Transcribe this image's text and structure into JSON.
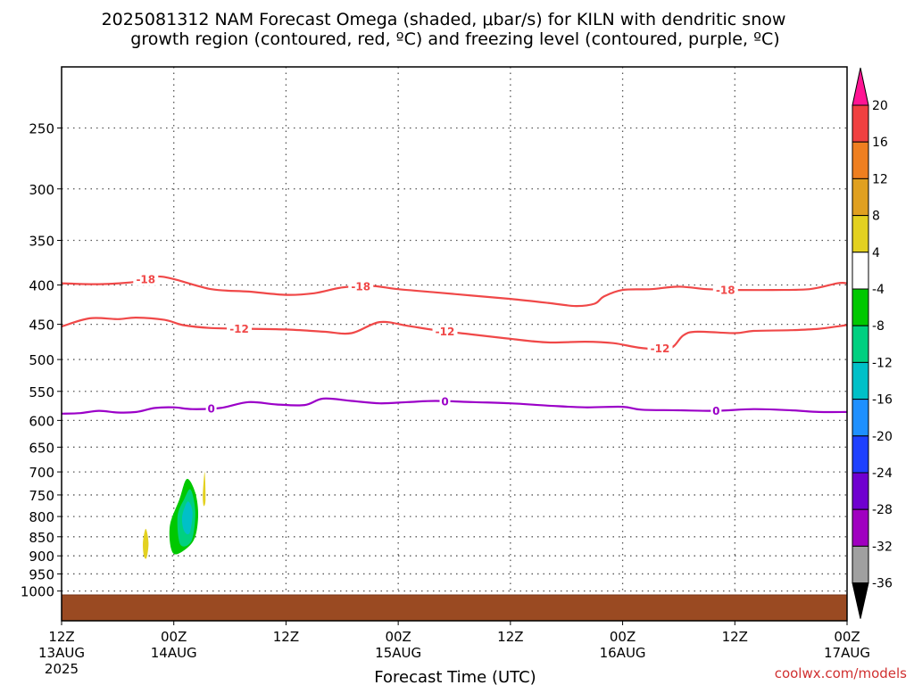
{
  "title": {
    "line1": "2025081312 NAM Forecast Omega (shaded, μbar/s) for KILN with dendritic snow",
    "line2": "growth region (contoured, red, ºC) and freezing level (contoured, purple, ºC)"
  },
  "xlabel": "Forecast Time (UTC)",
  "credit": "coolwx.com/models",
  "x_ticks": [
    {
      "h": 0,
      "l1": "12Z",
      "l2": "13AUG",
      "l3": "2025"
    },
    {
      "h": 12,
      "l1": "00Z",
      "l2": "14AUG",
      "l3": ""
    },
    {
      "h": 24,
      "l1": "12Z",
      "l2": "",
      "l3": ""
    },
    {
      "h": 36,
      "l1": "00Z",
      "l2": "15AUG",
      "l3": ""
    },
    {
      "h": 48,
      "l1": "12Z",
      "l2": "",
      "l3": ""
    },
    {
      "h": 60,
      "l1": "00Z",
      "l2": "16AUG",
      "l3": ""
    },
    {
      "h": 72,
      "l1": "12Z",
      "l2": "",
      "l3": ""
    },
    {
      "h": 84,
      "l1": "00Z",
      "l2": "17AUG",
      "l3": ""
    }
  ],
  "y_ticks": [
    250,
    300,
    350,
    400,
    450,
    500,
    550,
    600,
    650,
    700,
    750,
    800,
    850,
    900,
    950,
    1000
  ],
  "colorbar": {
    "labels": [
      "20",
      "16",
      "12",
      "8",
      "4",
      "-4",
      "-8",
      "-12",
      "-16",
      "-20",
      "-24",
      "-28",
      "-32",
      "-36"
    ],
    "colors": [
      "#ff1493",
      "#f04040",
      "#ef7f20",
      "#e0a020",
      "#e3d120",
      "#ffffff",
      "#00c800",
      "#00d080",
      "#00c0c8",
      "#1e90ff",
      "#1e40ff",
      "#7000d0",
      "#a000c0",
      "#a0a0a0",
      "#000000"
    ]
  },
  "chart_data": {
    "type": "contour",
    "x_unit": "forecast hours from 2025-08-13 12Z",
    "xlim": [
      0,
      84
    ],
    "y_unit": "hPa",
    "ylim": [
      200,
      1050
    ],
    "surface_color": "#9a4a22",
    "series": [
      {
        "name": "-18",
        "color": "#f04848",
        "labels": [
          {
            "h": 9,
            "text": "-18"
          },
          {
            "h": 32,
            "text": "-18"
          },
          {
            "h": 71,
            "text": "-18"
          }
        ],
        "points": [
          [
            0,
            398
          ],
          [
            4,
            399
          ],
          [
            8,
            396
          ],
          [
            10,
            390
          ],
          [
            12,
            393
          ],
          [
            16,
            405
          ],
          [
            20,
            408
          ],
          [
            24,
            412
          ],
          [
            27,
            410
          ],
          [
            30,
            403
          ],
          [
            33,
            401
          ],
          [
            36,
            405
          ],
          [
            40,
            409
          ],
          [
            44,
            413
          ],
          [
            48,
            417
          ],
          [
            52,
            422
          ],
          [
            55,
            426
          ],
          [
            57,
            423
          ],
          [
            58,
            414
          ],
          [
            60,
            406
          ],
          [
            63,
            405
          ],
          [
            66,
            402
          ],
          [
            69,
            405
          ],
          [
            72,
            406
          ],
          [
            76,
            406
          ],
          [
            80,
            405
          ],
          [
            83,
            398
          ],
          [
            84,
            398
          ]
        ]
      },
      {
        "name": "-12",
        "color": "#f04848",
        "labels": [
          {
            "h": 19,
            "text": "-12"
          },
          {
            "h": 41,
            "text": "-12"
          },
          {
            "h": 64,
            "text": "-12"
          }
        ],
        "points": [
          [
            0,
            453
          ],
          [
            3,
            442
          ],
          [
            6,
            443
          ],
          [
            8,
            441
          ],
          [
            11,
            444
          ],
          [
            13,
            451
          ],
          [
            16,
            455
          ],
          [
            20,
            456
          ],
          [
            24,
            457
          ],
          [
            28,
            460
          ],
          [
            31,
            462
          ],
          [
            34,
            447
          ],
          [
            37,
            452
          ],
          [
            40,
            458
          ],
          [
            44,
            464
          ],
          [
            48,
            470
          ],
          [
            52,
            475
          ],
          [
            56,
            474
          ],
          [
            59,
            476
          ],
          [
            62,
            483
          ],
          [
            65,
            484
          ],
          [
            66.5,
            465
          ],
          [
            68,
            460
          ],
          [
            72,
            462
          ],
          [
            74,
            459
          ],
          [
            78,
            458
          ],
          [
            81,
            456
          ],
          [
            84,
            451
          ]
        ]
      },
      {
        "name": "0",
        "color": "#9b00c8",
        "labels": [
          {
            "h": 16,
            "text": "0"
          },
          {
            "h": 41,
            "text": "0"
          },
          {
            "h": 70,
            "text": "0"
          }
        ],
        "points": [
          [
            0,
            588
          ],
          [
            2,
            587
          ],
          [
            4,
            583
          ],
          [
            6,
            586
          ],
          [
            8,
            585
          ],
          [
            10,
            578
          ],
          [
            12,
            577
          ],
          [
            14,
            580
          ],
          [
            17,
            578
          ],
          [
            20,
            568
          ],
          [
            23,
            572
          ],
          [
            26,
            573
          ],
          [
            28,
            562
          ],
          [
            31,
            566
          ],
          [
            34,
            570
          ],
          [
            37,
            568
          ],
          [
            40,
            566
          ],
          [
            44,
            568
          ],
          [
            48,
            570
          ],
          [
            52,
            574
          ],
          [
            56,
            577
          ],
          [
            60,
            576
          ],
          [
            62,
            581
          ],
          [
            66,
            582
          ],
          [
            70,
            583
          ],
          [
            74,
            580
          ],
          [
            78,
            582
          ],
          [
            81,
            585
          ],
          [
            84,
            585
          ]
        ]
      }
    ],
    "omega_regions": [
      {
        "value": -8,
        "color": "#00c800",
        "points": [
          [
            11.6,
            820
          ],
          [
            12.6,
            760
          ],
          [
            13.4,
            715
          ],
          [
            14.3,
            745
          ],
          [
            14.6,
            800
          ],
          [
            14.1,
            860
          ],
          [
            12.4,
            895
          ],
          [
            11.7,
            880
          ]
        ]
      },
      {
        "value": -12,
        "color": "#00d080",
        "points": [
          [
            12.4,
            800
          ],
          [
            13.1,
            760
          ],
          [
            13.8,
            738
          ],
          [
            14.3,
            790
          ],
          [
            13.9,
            860
          ],
          [
            12.7,
            870
          ]
        ]
      },
      {
        "value": -16,
        "color": "#00c0c8",
        "points": [
          [
            12.9,
            800
          ],
          [
            13.5,
            765
          ],
          [
            14.0,
            790
          ],
          [
            13.7,
            840
          ],
          [
            13.1,
            835
          ]
        ]
      },
      {
        "value": 4,
        "color": "#e3d120",
        "points": [
          [
            8.7,
            865
          ],
          [
            9.0,
            830
          ],
          [
            9.3,
            865
          ],
          [
            9.1,
            905
          ],
          [
            8.8,
            900
          ]
        ]
      },
      {
        "value": 4,
        "color": "#e3d120",
        "points": [
          [
            15.1,
            750
          ],
          [
            15.3,
            700
          ],
          [
            15.4,
            760
          ],
          [
            15.2,
            775
          ]
        ]
      }
    ]
  }
}
